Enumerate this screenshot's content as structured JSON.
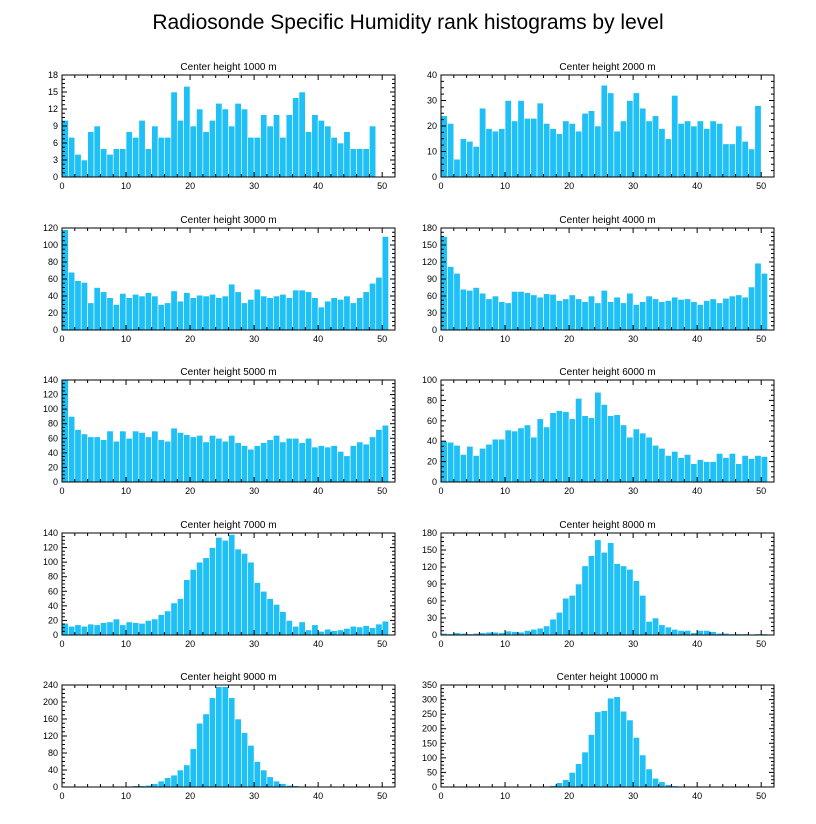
{
  "figure_title": "Radiosonde Specific Humidity rank histograms by level",
  "chart_data": [
    {
      "type": "bar",
      "title": "Center height 1000 m",
      "xlim": [
        0,
        52
      ],
      "ylim": [
        0,
        18
      ],
      "yticks": [
        0,
        3,
        6,
        9,
        12,
        15,
        18
      ],
      "xticks": [
        0,
        10,
        20,
        30,
        40,
        50
      ],
      "values": [
        10,
        7,
        4,
        3,
        8,
        9,
        5,
        4,
        5,
        5,
        8,
        7,
        10,
        5,
        9,
        7,
        7,
        15,
        10,
        16,
        9,
        12,
        8,
        10,
        13,
        12,
        9,
        13,
        12,
        7,
        7,
        11,
        9,
        11,
        7,
        11,
        14,
        15,
        8,
        11,
        10,
        9,
        7,
        6,
        8,
        5,
        5,
        5,
        9
      ]
    },
    {
      "type": "bar",
      "title": "Center height 2000 m",
      "xlim": [
        0,
        52
      ],
      "ylim": [
        0,
        40
      ],
      "yticks": [
        0,
        10,
        20,
        30,
        40
      ],
      "xticks": [
        0,
        10,
        20,
        30,
        40,
        50
      ],
      "values": [
        24,
        21,
        7,
        15,
        14,
        12,
        27,
        19,
        18,
        19,
        30,
        22,
        30,
        23,
        23,
        29,
        21,
        19,
        17,
        22,
        21,
        18,
        25,
        26,
        20,
        36,
        33,
        18,
        22,
        30,
        33,
        27,
        22,
        24,
        19,
        15,
        32,
        21,
        22,
        20,
        22,
        19,
        22,
        21,
        13,
        13,
        20,
        14,
        11,
        28
      ]
    },
    {
      "type": "bar",
      "title": "Center height 3000 m",
      "xlim": [
        0,
        52
      ],
      "ylim": [
        0,
        120
      ],
      "yticks": [
        0,
        20,
        40,
        60,
        80,
        100,
        120
      ],
      "xticks": [
        0,
        10,
        20,
        30,
        40,
        50
      ],
      "values": [
        118,
        68,
        58,
        56,
        32,
        50,
        45,
        38,
        30,
        43,
        38,
        42,
        40,
        44,
        40,
        30,
        32,
        46,
        34,
        44,
        38,
        41,
        40,
        42,
        38,
        40,
        54,
        45,
        32,
        36,
        48,
        40,
        38,
        40,
        42,
        38,
        47,
        47,
        45,
        38,
        27,
        34,
        38,
        36,
        40,
        32,
        38,
        45,
        55,
        62,
        110
      ]
    },
    {
      "type": "bar",
      "title": "Center height 4000 m",
      "xlim": [
        0,
        52
      ],
      "ylim": [
        0,
        180
      ],
      "yticks": [
        0,
        30,
        60,
        90,
        120,
        150,
        180
      ],
      "xticks": [
        0,
        10,
        20,
        30,
        40,
        50
      ],
      "values": [
        165,
        112,
        100,
        72,
        70,
        75,
        65,
        55,
        60,
        50,
        48,
        68,
        68,
        66,
        62,
        58,
        64,
        63,
        52,
        55,
        62,
        55,
        50,
        60,
        48,
        70,
        50,
        58,
        48,
        65,
        45,
        50,
        60,
        55,
        50,
        52,
        58,
        54,
        55,
        50,
        45,
        52,
        55,
        48,
        56,
        60,
        62,
        58,
        76,
        118,
        100
      ]
    },
    {
      "type": "bar",
      "title": "Center height 5000 m",
      "xlim": [
        0,
        52
      ],
      "ylim": [
        0,
        140
      ],
      "yticks": [
        0,
        20,
        40,
        60,
        80,
        100,
        120,
        140
      ],
      "xticks": [
        0,
        10,
        20,
        30,
        40,
        50
      ],
      "values": [
        140,
        90,
        72,
        66,
        62,
        62,
        58,
        70,
        56,
        70,
        60,
        70,
        68,
        62,
        70,
        58,
        56,
        74,
        68,
        65,
        62,
        64,
        55,
        64,
        60,
        56,
        64,
        54,
        50,
        45,
        50,
        54,
        58,
        64,
        55,
        60,
        60,
        54,
        60,
        48,
        50,
        48,
        50,
        42,
        36,
        50,
        55,
        52,
        62,
        72,
        78
      ]
    },
    {
      "type": "bar",
      "title": "Center height 6000 m",
      "xlim": [
        0,
        52
      ],
      "ylim": [
        0,
        100
      ],
      "yticks": [
        0,
        20,
        40,
        60,
        80,
        100
      ],
      "xticks": [
        0,
        10,
        20,
        30,
        40,
        50
      ],
      "values": [
        40,
        39,
        36,
        27,
        35,
        26,
        33,
        37,
        42,
        42,
        51,
        50,
        53,
        56,
        44,
        62,
        54,
        68,
        70,
        69,
        62,
        82,
        65,
        63,
        88,
        76,
        65,
        66,
        56,
        44,
        52,
        48,
        44,
        36,
        33,
        26,
        30,
        24,
        27,
        18,
        22,
        20,
        20,
        28,
        24,
        28,
        18,
        26,
        23,
        26,
        25
      ]
    },
    {
      "type": "bar",
      "title": "Center height 7000 m",
      "xlim": [
        0,
        52
      ],
      "ylim": [
        0,
        140
      ],
      "yticks": [
        0,
        20,
        40,
        60,
        80,
        100,
        120,
        140
      ],
      "xticks": [
        0,
        10,
        20,
        30,
        40,
        50
      ],
      "values": [
        16,
        12,
        14,
        12,
        15,
        14,
        17,
        18,
        22,
        14,
        18,
        17,
        16,
        20,
        22,
        28,
        33,
        44,
        50,
        76,
        90,
        100,
        106,
        120,
        134,
        130,
        138,
        118,
        112,
        100,
        72,
        60,
        50,
        42,
        32,
        20,
        12,
        18,
        7,
        14,
        5,
        8,
        6,
        7,
        9,
        12,
        11,
        13,
        10,
        15,
        19
      ]
    },
    {
      "type": "bar",
      "title": "Center height 8000 m",
      "xlim": [
        0,
        52
      ],
      "ylim": [
        0,
        180
      ],
      "yticks": [
        0,
        30,
        60,
        90,
        120,
        150,
        180
      ],
      "xticks": [
        0,
        10,
        20,
        30,
        40,
        50
      ],
      "values": [
        3,
        2,
        4,
        3,
        2,
        3,
        4,
        5,
        5,
        4,
        7,
        6,
        5,
        8,
        10,
        12,
        16,
        28,
        40,
        65,
        70,
        90,
        122,
        140,
        168,
        146,
        163,
        126,
        122,
        116,
        96,
        70,
        24,
        30,
        18,
        14,
        10,
        8,
        8,
        4,
        8,
        8,
        6,
        3,
        3,
        2,
        2,
        2,
        1,
        2,
        2
      ]
    },
    {
      "type": "bar",
      "title": "Center height 9000 m",
      "xlim": [
        0,
        52
      ],
      "ylim": [
        0,
        240
      ],
      "yticks": [
        0,
        40,
        80,
        120,
        160,
        200,
        240
      ],
      "xticks": [
        0,
        10,
        20,
        30,
        40,
        50
      ],
      "values": [
        2,
        0,
        0,
        0,
        0,
        1,
        1,
        1,
        1,
        2,
        2,
        3,
        3,
        4,
        8,
        14,
        22,
        28,
        40,
        52,
        90,
        150,
        172,
        210,
        236,
        236,
        210,
        160,
        128,
        98,
        60,
        40,
        24,
        14,
        8,
        4,
        3,
        2,
        1,
        1,
        1,
        0,
        0,
        0,
        0,
        0,
        0,
        0,
        0,
        0,
        0
      ]
    },
    {
      "type": "bar",
      "title": "Center height 10000 m",
      "xlim": [
        0,
        52
      ],
      "ylim": [
        0,
        350
      ],
      "yticks": [
        0,
        50,
        100,
        150,
        200,
        250,
        300,
        350
      ],
      "xticks": [
        0,
        10,
        20,
        30,
        40,
        50
      ],
      "values": [
        0,
        0,
        0,
        0,
        0,
        0,
        0,
        0,
        0,
        0,
        0,
        0,
        0,
        0,
        0,
        1,
        2,
        5,
        15,
        25,
        50,
        80,
        120,
        180,
        258,
        262,
        305,
        310,
        260,
        230,
        170,
        110,
        62,
        30,
        18,
        8,
        4,
        2,
        1,
        0,
        0,
        0,
        0,
        0,
        0,
        0,
        0,
        0,
        0,
        0,
        0
      ]
    }
  ]
}
